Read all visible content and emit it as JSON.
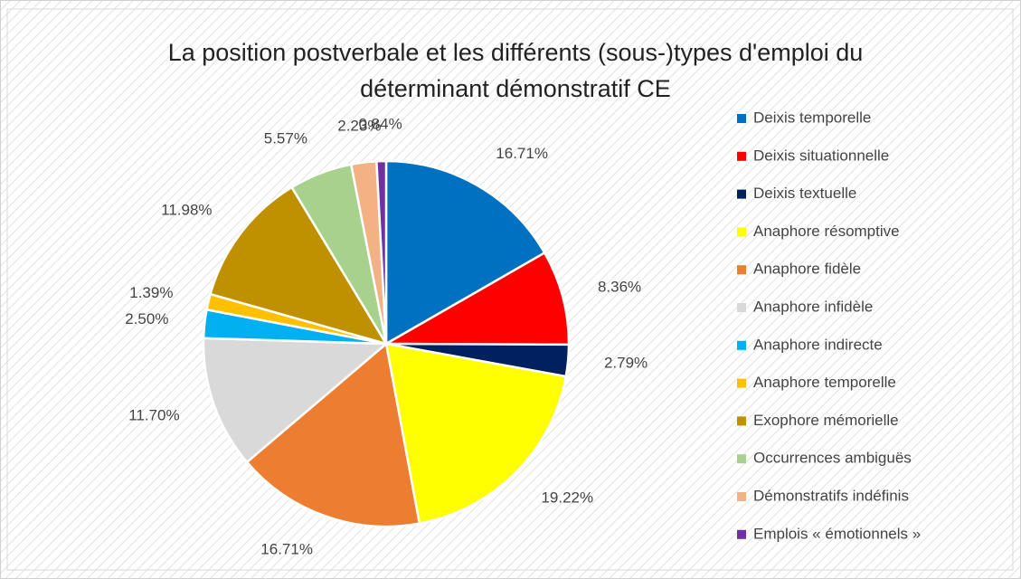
{
  "chart_data": {
    "type": "pie",
    "title": "La position postverbale et les différents (sous-)types d'emploi du déterminant démonstratif CE",
    "categories": [
      "Deixis temporelle",
      "Deixis situationnelle",
      "Deixis textuelle",
      "Anaphore résomptive",
      "Anaphore fidèle",
      "Anaphore infidèle",
      "Anaphore indirecte",
      "Anaphore temporelle",
      "Exophore mémorielle",
      "Occurrences ambiguës",
      "Démonstratifs indéfinis",
      "Emplois « émotionnels »"
    ],
    "values": [
      16.71,
      8.36,
      2.79,
      19.22,
      16.71,
      11.7,
      2.5,
      1.39,
      11.98,
      5.57,
      2.23,
      0.84
    ],
    "value_labels": [
      "16.71%",
      "8.36%",
      "2.79%",
      "19.22%",
      "16.71%",
      "11.70%",
      "2.50%",
      "1.39%",
      "11.98%",
      "5.57%",
      "2.23%",
      "0.84%"
    ],
    "colors": [
      "#0070c0",
      "#ff0000",
      "#002060",
      "#ffff00",
      "#ed7d31",
      "#d9d9d9",
      "#00b0f0",
      "#ffc000",
      "#bf9000",
      "#a9d18e",
      "#f4b183",
      "#7030a0"
    ],
    "legend": "right"
  }
}
